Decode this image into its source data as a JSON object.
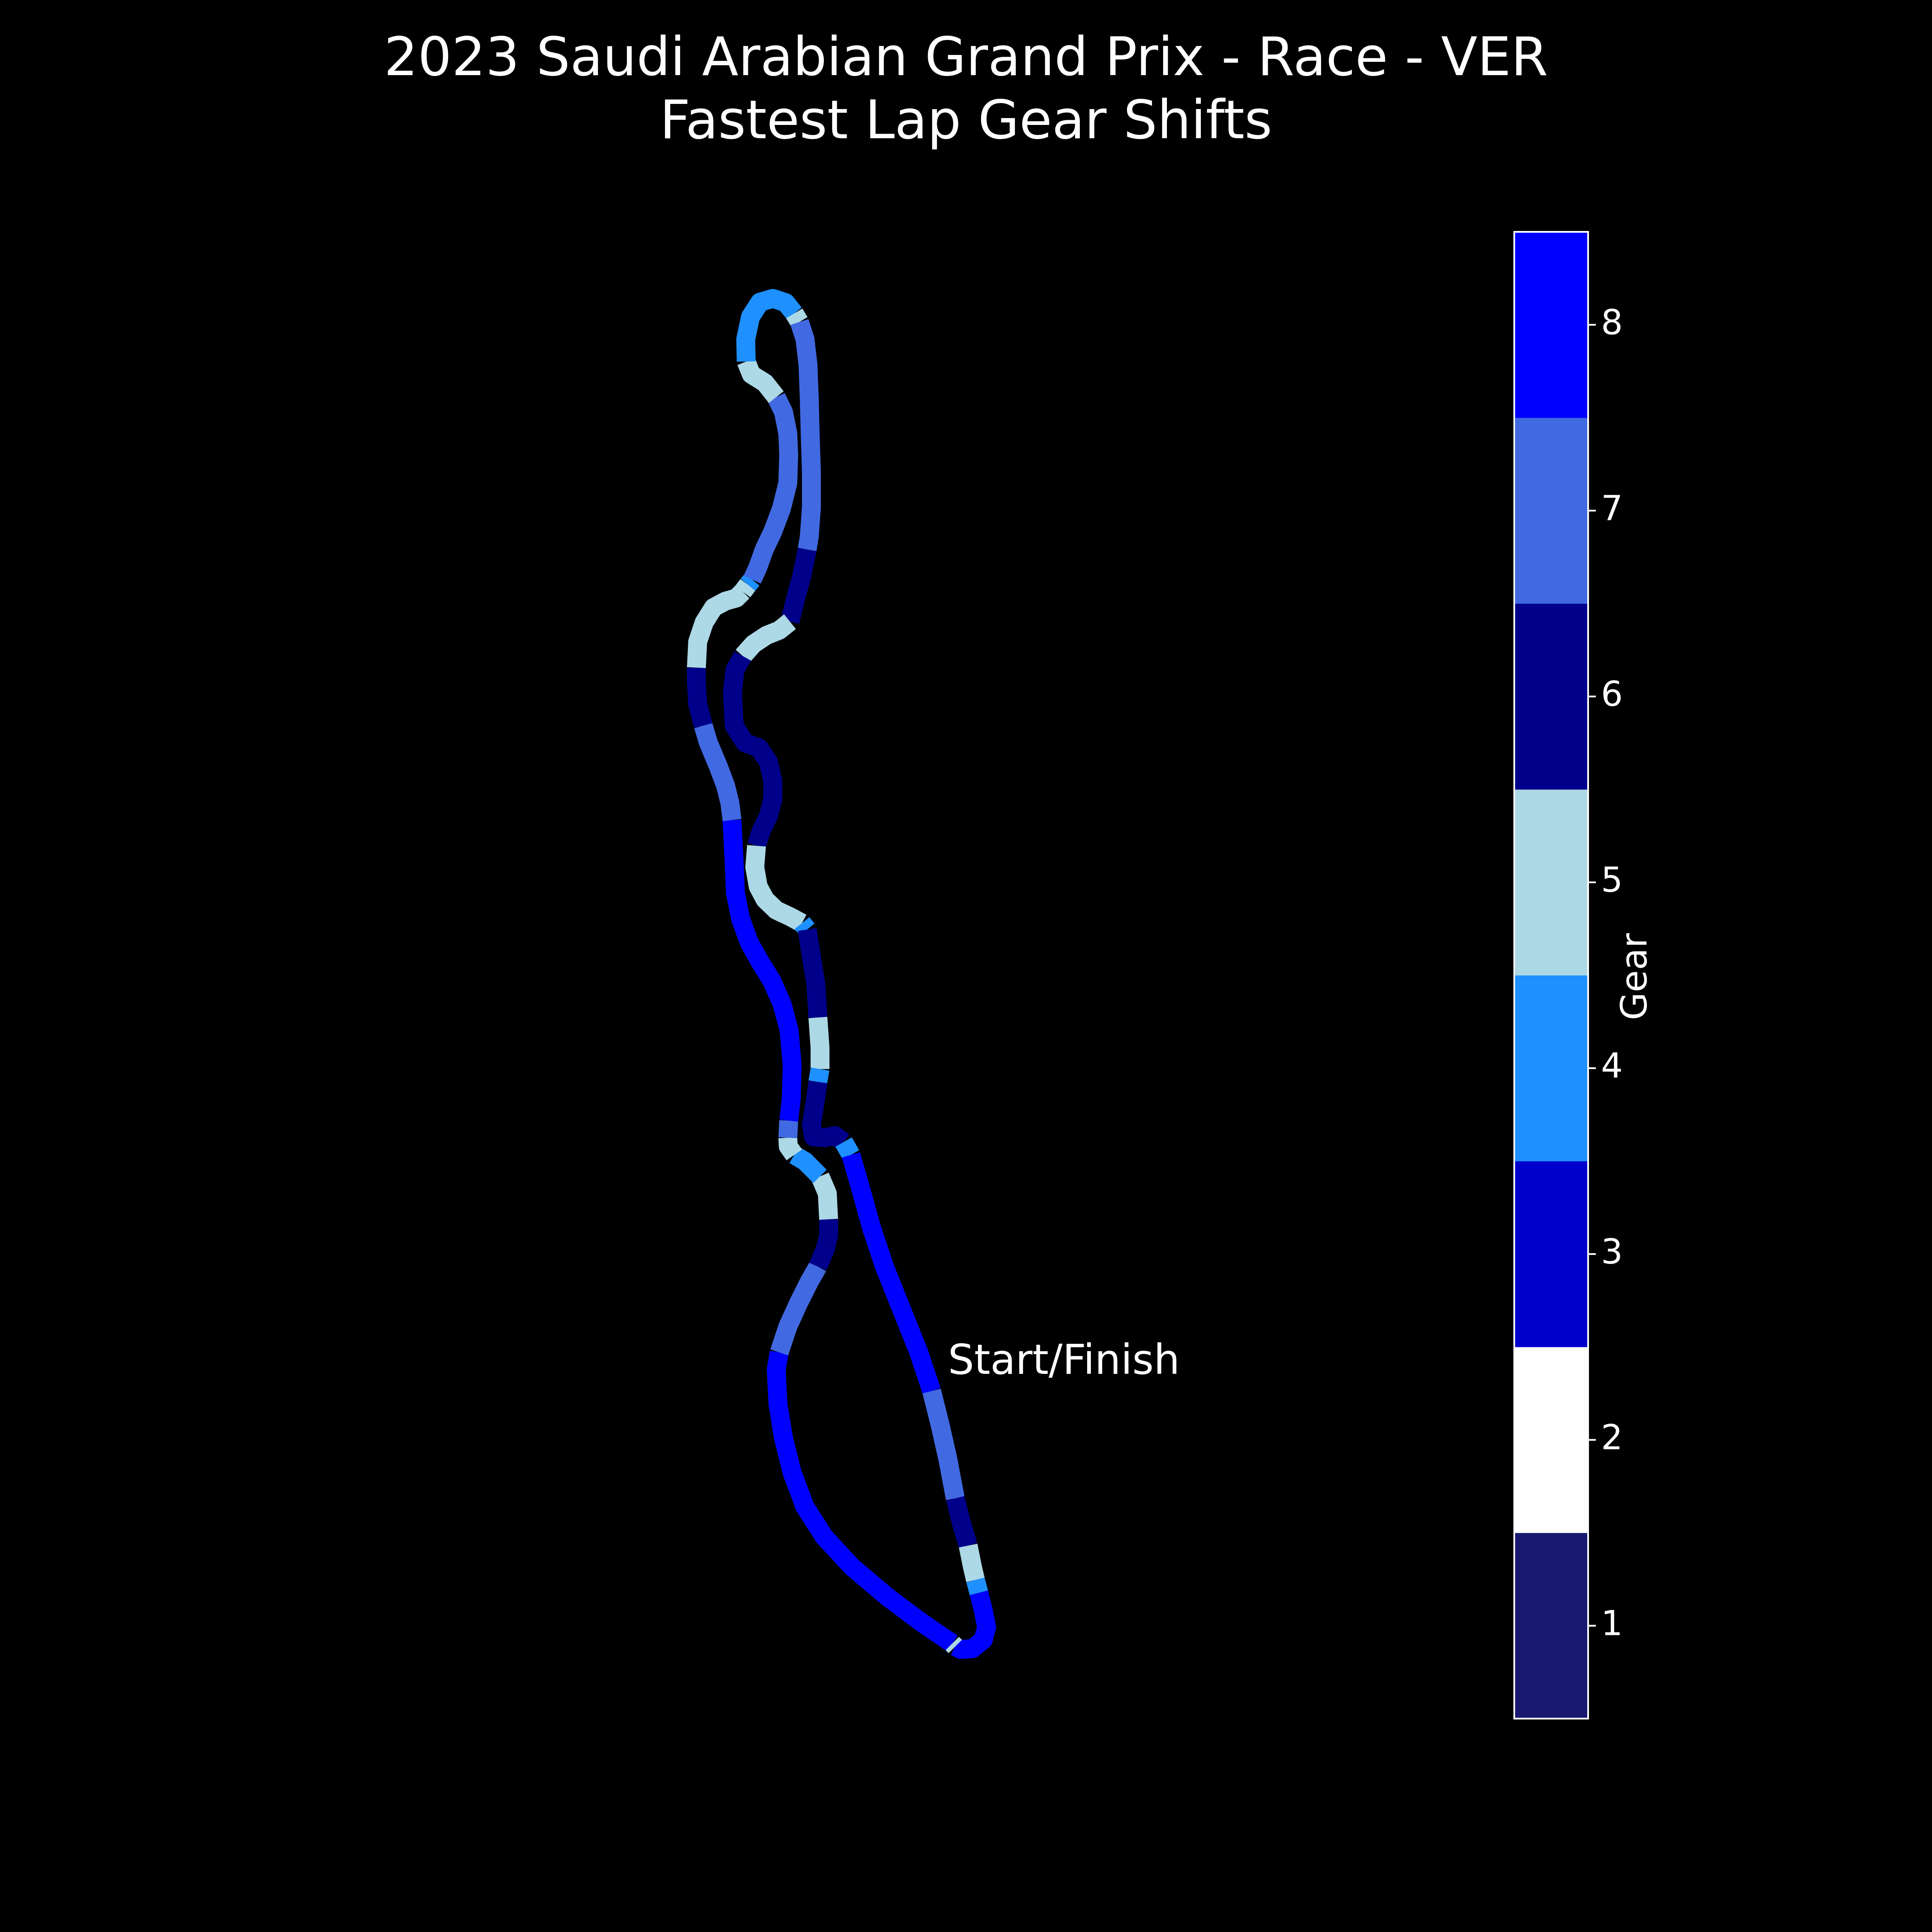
{
  "chart_data": {
    "type": "line",
    "title": "2023 Saudi Arabian Grand Prix - Race - VER",
    "subtitle": "Fastest Lap Gear Shifts",
    "annotation": "Start/Finish",
    "colorbar": {
      "label": "Gear",
      "ticks": [
        "1",
        "2",
        "3",
        "4",
        "5",
        "6",
        "7",
        "8"
      ],
      "colors": [
        "#191970",
        "#ffffff",
        "#0000cd",
        "#1e90ff",
        "#add8e6",
        "#00008b",
        "#4169e1",
        "#0000ff"
      ]
    },
    "gear_segments": [
      {
        "gear": 8,
        "points": [
          [
            2218,
            3828
          ],
          [
            2145,
            3778
          ],
          [
            2065,
            3718
          ],
          [
            1985,
            3650
          ],
          [
            1920,
            3580
          ],
          [
            1875,
            3510
          ],
          [
            1845,
            3430
          ],
          [
            1825,
            3350
          ],
          [
            1812,
            3270
          ],
          [
            1808,
            3190
          ],
          [
            1815,
            3150
          ]
        ]
      },
      {
        "gear": 7,
        "points": [
          [
            1815,
            3150
          ],
          [
            1835,
            3090
          ],
          [
            1860,
            3035
          ],
          [
            1885,
            2985
          ],
          [
            1905,
            2950
          ]
        ]
      },
      {
        "gear": 6,
        "points": [
          [
            1905,
            2950
          ],
          [
            1922,
            2910
          ],
          [
            1930,
            2878
          ],
          [
            1930,
            2840
          ]
        ]
      },
      {
        "gear": 5,
        "points": [
          [
            1930,
            2840
          ],
          [
            1927,
            2780
          ],
          [
            1910,
            2740
          ]
        ]
      },
      {
        "gear": 4,
        "points": [
          [
            1910,
            2740
          ],
          [
            1875,
            2705
          ],
          [
            1850,
            2690
          ]
        ]
      },
      {
        "gear": 5,
        "points": [
          [
            1850,
            2690
          ],
          [
            1836,
            2670
          ],
          [
            1835,
            2650
          ]
        ]
      },
      {
        "gear": 7,
        "points": [
          [
            1835,
            2650
          ],
          [
            1837,
            2610
          ]
        ]
      },
      {
        "gear": 8,
        "points": [
          [
            1837,
            2610
          ],
          [
            1843,
            2560
          ],
          [
            1845,
            2480
          ],
          [
            1838,
            2400
          ],
          [
            1822,
            2340
          ],
          [
            1798,
            2285
          ],
          [
            1770,
            2240
          ],
          [
            1745,
            2195
          ],
          [
            1725,
            2140
          ],
          [
            1713,
            2080
          ],
          [
            1710,
            2010
          ],
          [
            1707,
            1950
          ],
          [
            1705,
            1910
          ]
        ]
      },
      {
        "gear": 7,
        "points": [
          [
            1705,
            1910
          ],
          [
            1700,
            1870
          ],
          [
            1690,
            1830
          ],
          [
            1673,
            1785
          ],
          [
            1650,
            1730
          ],
          [
            1638,
            1690
          ]
        ]
      },
      {
        "gear": 6,
        "points": [
          [
            1638,
            1690
          ],
          [
            1625,
            1640
          ],
          [
            1622,
            1590
          ],
          [
            1622,
            1555
          ]
        ]
      },
      {
        "gear": 5,
        "points": [
          [
            1622,
            1555
          ],
          [
            1625,
            1495
          ],
          [
            1640,
            1450
          ],
          [
            1662,
            1415
          ],
          [
            1690,
            1400
          ],
          [
            1715,
            1393
          ],
          [
            1730,
            1378
          ]
        ]
      },
      {
        "gear": 5,
        "points": [
          [
            1730,
            1378
          ],
          [
            1742,
            1362
          ]
        ]
      },
      {
        "gear": 4,
        "points": [
          [
            1742,
            1362
          ],
          [
            1752,
            1350
          ]
        ]
      },
      {
        "gear": 7,
        "points": [
          [
            1752,
            1350
          ],
          [
            1765,
            1322
          ],
          [
            1780,
            1280
          ],
          [
            1800,
            1238
          ],
          [
            1820,
            1185
          ],
          [
            1835,
            1125
          ],
          [
            1837,
            1060
          ],
          [
            1835,
            1010
          ],
          [
            1825,
            960
          ],
          [
            1808,
            925
          ]
        ]
      },
      {
        "gear": 5,
        "points": [
          [
            1808,
            925
          ],
          [
            1782,
            892
          ],
          [
            1750,
            872
          ],
          [
            1738,
            842
          ]
        ]
      },
      {
        "gear": 4,
        "points": [
          [
            1738,
            842
          ],
          [
            1737,
            790
          ],
          [
            1748,
            738
          ],
          [
            1770,
            704
          ],
          [
            1800,
            695
          ],
          [
            1830,
            705
          ],
          [
            1850,
            730
          ]
        ]
      },
      {
        "gear": 5,
        "points": [
          [
            1850,
            730
          ],
          [
            1862,
            750
          ]
        ]
      },
      {
        "gear": 7,
        "points": [
          [
            1862,
            750
          ],
          [
            1875,
            790
          ],
          [
            1882,
            850
          ],
          [
            1885,
            930
          ],
          [
            1887,
            1010
          ],
          [
            1890,
            1100
          ],
          [
            1890,
            1180
          ],
          [
            1885,
            1250
          ],
          [
            1880,
            1280
          ]
        ]
      },
      {
        "gear": 6,
        "points": [
          [
            1880,
            1280
          ],
          [
            1868,
            1340
          ],
          [
            1854,
            1390
          ],
          [
            1840,
            1448
          ]
        ]
      },
      {
        "gear": 5,
        "points": [
          [
            1840,
            1448
          ],
          [
            1815,
            1468
          ],
          [
            1785,
            1480
          ],
          [
            1755,
            1500
          ],
          [
            1730,
            1528
          ]
        ]
      },
      {
        "gear": 6,
        "points": [
          [
            1730,
            1528
          ],
          [
            1712,
            1560
          ],
          [
            1706,
            1610
          ],
          [
            1710,
            1690
          ],
          [
            1735,
            1730
          ],
          [
            1768,
            1742
          ],
          [
            1790,
            1775
          ],
          [
            1800,
            1820
          ],
          [
            1800,
            1860
          ],
          [
            1790,
            1900
          ],
          [
            1773,
            1935
          ],
          [
            1762,
            1970
          ]
        ]
      },
      {
        "gear": 5,
        "points": [
          [
            1762,
            1970
          ],
          [
            1758,
            2020
          ],
          [
            1766,
            2065
          ],
          [
            1782,
            2095
          ],
          [
            1808,
            2120
          ],
          [
            1840,
            2135
          ],
          [
            1868,
            2150
          ]
        ]
      },
      {
        "gear": 4,
        "points": [
          [
            1868,
            2150
          ],
          [
            1880,
            2165
          ]
        ]
      },
      {
        "gear": 6,
        "points": [
          [
            1880,
            2165
          ],
          [
            1890,
            2230
          ],
          [
            1900,
            2290
          ],
          [
            1905,
            2370
          ]
        ]
      },
      {
        "gear": 5,
        "points": [
          [
            1905,
            2370
          ],
          [
            1910,
            2440
          ],
          [
            1910,
            2490
          ]
        ]
      },
      {
        "gear": 4,
        "points": [
          [
            1910,
            2490
          ],
          [
            1905,
            2520
          ]
        ]
      },
      {
        "gear": 6,
        "points": [
          [
            1905,
            2520
          ],
          [
            1898,
            2570
          ],
          [
            1890,
            2620
          ],
          [
            1895,
            2648
          ],
          [
            1920,
            2650
          ],
          [
            1945,
            2645
          ],
          [
            1965,
            2660
          ]
        ]
      },
      {
        "gear": 4,
        "points": [
          [
            1965,
            2660
          ],
          [
            1982,
            2690
          ]
        ]
      },
      {
        "gear": 8,
        "points": [
          [
            1982,
            2690
          ],
          [
            2005,
            2770
          ],
          [
            2030,
            2860
          ],
          [
            2060,
            2950
          ],
          [
            2100,
            3050
          ],
          [
            2140,
            3150
          ],
          [
            2170,
            3240
          ]
        ]
      },
      {
        "gear": 7,
        "points": [
          [
            2170,
            3240
          ],
          [
            2190,
            3320
          ],
          [
            2208,
            3400
          ],
          [
            2225,
            3490
          ]
        ]
      },
      {
        "gear": 6,
        "points": [
          [
            2225,
            3490
          ],
          [
            2240,
            3550
          ],
          [
            2255,
            3600
          ]
        ]
      },
      {
        "gear": 5,
        "points": [
          [
            2255,
            3600
          ],
          [
            2265,
            3650
          ],
          [
            2272,
            3680
          ]
        ]
      },
      {
        "gear": 4,
        "points": [
          [
            2272,
            3680
          ],
          [
            2280,
            3710
          ]
        ]
      },
      {
        "gear": 8,
        "points": [
          [
            2280,
            3710
          ],
          [
            2290,
            3750
          ],
          [
            2298,
            3790
          ],
          [
            2290,
            3820
          ],
          [
            2265,
            3840
          ],
          [
            2238,
            3842
          ],
          [
            2225,
            3835
          ]
        ]
      },
      {
        "gear": 5,
        "points": [
          [
            2225,
            3835
          ],
          [
            2218,
            3828
          ]
        ]
      }
    ]
  }
}
